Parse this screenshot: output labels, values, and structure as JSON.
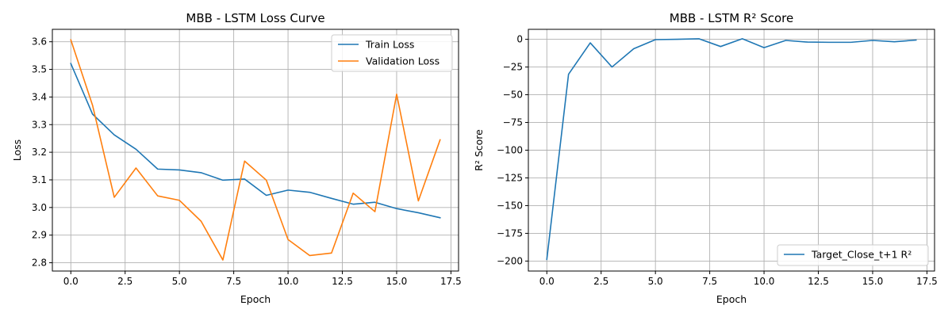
{
  "chart_data": [
    {
      "type": "line",
      "title": "MBB - LSTM Loss Curve",
      "xlabel": "Epoch",
      "ylabel": "Loss",
      "xlim": [
        -0.85,
        17.85
      ],
      "ylim": [
        2.77,
        3.645
      ],
      "xticks": [
        0.0,
        2.5,
        5.0,
        7.5,
        10.0,
        12.5,
        15.0,
        17.5
      ],
      "xtick_labels": [
        "0.0",
        "2.5",
        "5.0",
        "7.5",
        "10.0",
        "12.5",
        "15.0",
        "17.5"
      ],
      "yticks": [
        2.8,
        2.9,
        3.0,
        3.1,
        3.2,
        3.3,
        3.4,
        3.5,
        3.6
      ],
      "ytick_labels": [
        "2.8",
        "2.9",
        "3.0",
        "3.1",
        "3.2",
        "3.3",
        "3.4",
        "3.5",
        "3.6"
      ],
      "grid": true,
      "legend_position": "top-right",
      "x": [
        0,
        1,
        2,
        3,
        4,
        5,
        6,
        7,
        8,
        9,
        10,
        11,
        12,
        13,
        14,
        15,
        16,
        17
      ],
      "series": [
        {
          "name": "Train Loss",
          "color": "#1f77b4",
          "values": [
            3.521,
            3.338,
            3.263,
            3.211,
            3.139,
            3.136,
            3.126,
            3.099,
            3.103,
            3.044,
            3.063,
            3.055,
            3.033,
            3.012,
            3.019,
            2.996,
            2.981,
            2.963
          ]
        },
        {
          "name": "Validation Loss",
          "color": "#ff7f0e",
          "values": [
            3.607,
            3.37,
            3.037,
            3.143,
            3.042,
            3.026,
            2.95,
            2.81,
            3.168,
            3.099,
            2.884,
            2.826,
            2.835,
            3.052,
            2.985,
            3.41,
            3.024,
            3.245
          ]
        }
      ]
    },
    {
      "type": "line",
      "title": "MBB - LSTM R² Score",
      "xlabel": "Epoch",
      "ylabel": "R² Score",
      "xlim": [
        -0.85,
        17.85
      ],
      "ylim": [
        -209,
        9
      ],
      "xticks": [
        0.0,
        2.5,
        5.0,
        7.5,
        10.0,
        12.5,
        15.0,
        17.5
      ],
      "xtick_labels": [
        "0.0",
        "2.5",
        "5.0",
        "7.5",
        "10.0",
        "12.5",
        "15.0",
        "17.5"
      ],
      "yticks": [
        0,
        -25,
        -50,
        -75,
        -100,
        -125,
        -150,
        -175,
        -200
      ],
      "ytick_labels": [
        "0",
        "−25",
        "−50",
        "−75",
        "−100",
        "−125",
        "−150",
        "−175",
        "−200"
      ],
      "grid": true,
      "legend_position": "bottom-right",
      "x": [
        0,
        1,
        2,
        3,
        4,
        5,
        6,
        7,
        8,
        9,
        10,
        11,
        12,
        13,
        14,
        15,
        16,
        17
      ],
      "series": [
        {
          "name": "Target_Close_t+1 R²",
          "color": "#1f77b4",
          "values": [
            -198.5,
            -31.5,
            -3.2,
            -25.0,
            -8.5,
            -0.3,
            0.0,
            0.5,
            -6.5,
            0.5,
            -7.5,
            -1.0,
            -2.5,
            -2.7,
            -2.7,
            -1.0,
            -2.2,
            -0.7
          ]
        }
      ]
    }
  ]
}
